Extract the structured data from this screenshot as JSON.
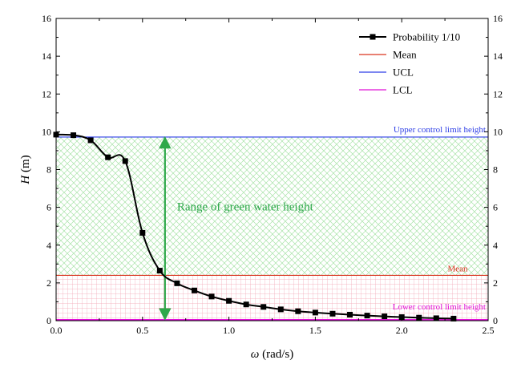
{
  "chart_data": {
    "type": "line",
    "title": "",
    "xlabel_symbol": "ω",
    "xlabel_unit": " (rad/s)",
    "ylabel_symbol": "H",
    "ylabel_unit": " (m)",
    "xlim": [
      0,
      2.5
    ],
    "ylim": [
      0,
      16
    ],
    "x_ticks": [
      "0.0",
      "0.5",
      "1.0",
      "1.5",
      "2.0",
      "2.5"
    ],
    "y_ticks": [
      "0",
      "2",
      "4",
      "6",
      "8",
      "10",
      "12",
      "14",
      "16"
    ],
    "grid": false,
    "legend_position": "top-right",
    "series": [
      {
        "name": "Probability 1/10",
        "color": "#000000",
        "marker": "square",
        "x": [
          0.0,
          0.1,
          0.2,
          0.3,
          0.4,
          0.5,
          0.6,
          0.7,
          0.8,
          0.9,
          1.0,
          1.1,
          1.2,
          1.3,
          1.4,
          1.5,
          1.6,
          1.7,
          1.8,
          1.9,
          2.0,
          2.1,
          2.2,
          2.3
        ],
        "y": [
          9.85,
          9.82,
          9.55,
          8.65,
          8.45,
          4.65,
          2.65,
          1.98,
          1.6,
          1.28,
          1.05,
          0.86,
          0.73,
          0.6,
          0.5,
          0.43,
          0.37,
          0.32,
          0.27,
          0.23,
          0.19,
          0.16,
          0.13,
          0.11
        ]
      },
      {
        "name": "Mean",
        "color": "#d9341f",
        "value": 2.4
      },
      {
        "name": "UCL",
        "color": "#2d3ee6",
        "value": 9.72
      },
      {
        "name": "LCL",
        "color": "#e011d8",
        "value": 0.05
      }
    ],
    "annotations": {
      "ucl_label": "Upper control limit height",
      "mean_label": "Mean",
      "lcl_label": "Lower control limit height",
      "range_label": "Range of green water height",
      "range_arrow_x": 0.63,
      "range_from": 0.05,
      "range_to": 9.72
    },
    "colors": {
      "green_hatch": "#a9e3a9",
      "red_hatch": "#f2a3b3",
      "arrow": "#2ea84a"
    }
  }
}
